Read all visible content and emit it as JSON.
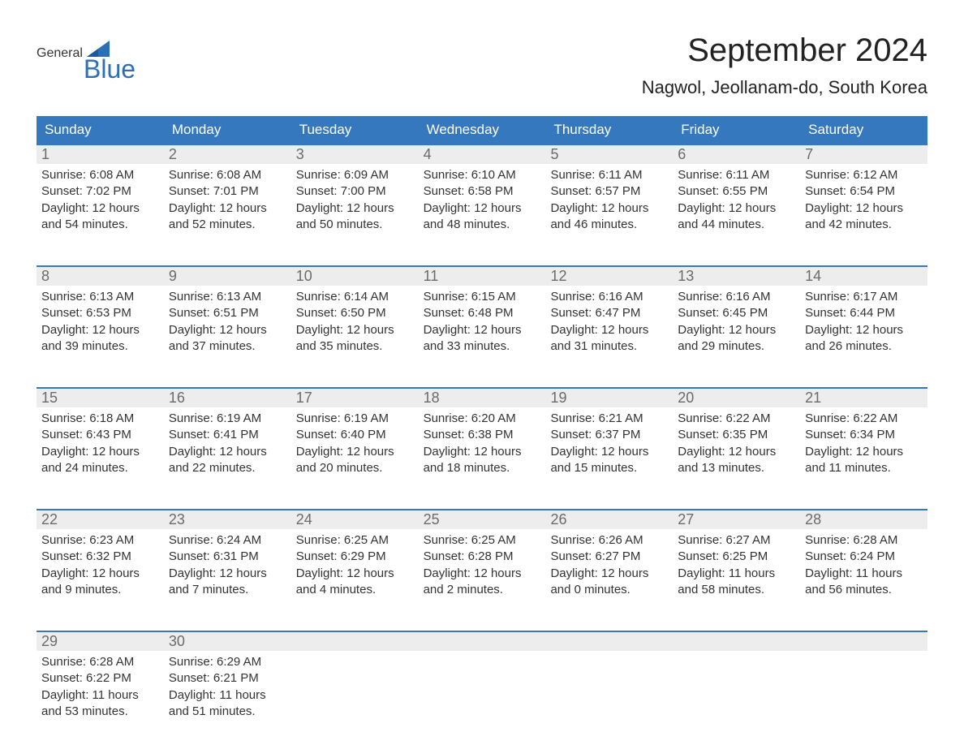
{
  "logo": {
    "text_general": "General",
    "text_blue": "Blue",
    "flag_color": "#2d6fb5"
  },
  "header": {
    "month_title": "September 2024",
    "location": "Nagwol, Jeollanam-do, South Korea"
  },
  "calendar": {
    "type": "table",
    "columns": [
      "Sunday",
      "Monday",
      "Tuesday",
      "Wednesday",
      "Thursday",
      "Friday",
      "Saturday"
    ],
    "header_bg": "#3678bd",
    "header_text_color": "#ffffff",
    "row_accent_color": "#3678bd",
    "daynum_bg": "#ededed",
    "daynum_color": "#6b6b6b",
    "body_text_color": "#333333",
    "background_color": "#ffffff",
    "header_fontsize": 17,
    "body_fontsize": 15,
    "daynum_fontsize": 18,
    "weeks": [
      [
        {
          "day": "1",
          "sunrise": "Sunrise: 6:08 AM",
          "sunset": "Sunset: 7:02 PM",
          "daylight": "Daylight: 12 hours and 54 minutes."
        },
        {
          "day": "2",
          "sunrise": "Sunrise: 6:08 AM",
          "sunset": "Sunset: 7:01 PM",
          "daylight": "Daylight: 12 hours and 52 minutes."
        },
        {
          "day": "3",
          "sunrise": "Sunrise: 6:09 AM",
          "sunset": "Sunset: 7:00 PM",
          "daylight": "Daylight: 12 hours and 50 minutes."
        },
        {
          "day": "4",
          "sunrise": "Sunrise: 6:10 AM",
          "sunset": "Sunset: 6:58 PM",
          "daylight": "Daylight: 12 hours and 48 minutes."
        },
        {
          "day": "5",
          "sunrise": "Sunrise: 6:11 AM",
          "sunset": "Sunset: 6:57 PM",
          "daylight": "Daylight: 12 hours and 46 minutes."
        },
        {
          "day": "6",
          "sunrise": "Sunrise: 6:11 AM",
          "sunset": "Sunset: 6:55 PM",
          "daylight": "Daylight: 12 hours and 44 minutes."
        },
        {
          "day": "7",
          "sunrise": "Sunrise: 6:12 AM",
          "sunset": "Sunset: 6:54 PM",
          "daylight": "Daylight: 12 hours and 42 minutes."
        }
      ],
      [
        {
          "day": "8",
          "sunrise": "Sunrise: 6:13 AM",
          "sunset": "Sunset: 6:53 PM",
          "daylight": "Daylight: 12 hours and 39 minutes."
        },
        {
          "day": "9",
          "sunrise": "Sunrise: 6:13 AM",
          "sunset": "Sunset: 6:51 PM",
          "daylight": "Daylight: 12 hours and 37 minutes."
        },
        {
          "day": "10",
          "sunrise": "Sunrise: 6:14 AM",
          "sunset": "Sunset: 6:50 PM",
          "daylight": "Daylight: 12 hours and 35 minutes."
        },
        {
          "day": "11",
          "sunrise": "Sunrise: 6:15 AM",
          "sunset": "Sunset: 6:48 PM",
          "daylight": "Daylight: 12 hours and 33 minutes."
        },
        {
          "day": "12",
          "sunrise": "Sunrise: 6:16 AM",
          "sunset": "Sunset: 6:47 PM",
          "daylight": "Daylight: 12 hours and 31 minutes."
        },
        {
          "day": "13",
          "sunrise": "Sunrise: 6:16 AM",
          "sunset": "Sunset: 6:45 PM",
          "daylight": "Daylight: 12 hours and 29 minutes."
        },
        {
          "day": "14",
          "sunrise": "Sunrise: 6:17 AM",
          "sunset": "Sunset: 6:44 PM",
          "daylight": "Daylight: 12 hours and 26 minutes."
        }
      ],
      [
        {
          "day": "15",
          "sunrise": "Sunrise: 6:18 AM",
          "sunset": "Sunset: 6:43 PM",
          "daylight": "Daylight: 12 hours and 24 minutes."
        },
        {
          "day": "16",
          "sunrise": "Sunrise: 6:19 AM",
          "sunset": "Sunset: 6:41 PM",
          "daylight": "Daylight: 12 hours and 22 minutes."
        },
        {
          "day": "17",
          "sunrise": "Sunrise: 6:19 AM",
          "sunset": "Sunset: 6:40 PM",
          "daylight": "Daylight: 12 hours and 20 minutes."
        },
        {
          "day": "18",
          "sunrise": "Sunrise: 6:20 AM",
          "sunset": "Sunset: 6:38 PM",
          "daylight": "Daylight: 12 hours and 18 minutes."
        },
        {
          "day": "19",
          "sunrise": "Sunrise: 6:21 AM",
          "sunset": "Sunset: 6:37 PM",
          "daylight": "Daylight: 12 hours and 15 minutes."
        },
        {
          "day": "20",
          "sunrise": "Sunrise: 6:22 AM",
          "sunset": "Sunset: 6:35 PM",
          "daylight": "Daylight: 12 hours and 13 minutes."
        },
        {
          "day": "21",
          "sunrise": "Sunrise: 6:22 AM",
          "sunset": "Sunset: 6:34 PM",
          "daylight": "Daylight: 12 hours and 11 minutes."
        }
      ],
      [
        {
          "day": "22",
          "sunrise": "Sunrise: 6:23 AM",
          "sunset": "Sunset: 6:32 PM",
          "daylight": "Daylight: 12 hours and 9 minutes."
        },
        {
          "day": "23",
          "sunrise": "Sunrise: 6:24 AM",
          "sunset": "Sunset: 6:31 PM",
          "daylight": "Daylight: 12 hours and 7 minutes."
        },
        {
          "day": "24",
          "sunrise": "Sunrise: 6:25 AM",
          "sunset": "Sunset: 6:29 PM",
          "daylight": "Daylight: 12 hours and 4 minutes."
        },
        {
          "day": "25",
          "sunrise": "Sunrise: 6:25 AM",
          "sunset": "Sunset: 6:28 PM",
          "daylight": "Daylight: 12 hours and 2 minutes."
        },
        {
          "day": "26",
          "sunrise": "Sunrise: 6:26 AM",
          "sunset": "Sunset: 6:27 PM",
          "daylight": "Daylight: 12 hours and 0 minutes."
        },
        {
          "day": "27",
          "sunrise": "Sunrise: 6:27 AM",
          "sunset": "Sunset: 6:25 PM",
          "daylight": "Daylight: 11 hours and 58 minutes."
        },
        {
          "day": "28",
          "sunrise": "Sunrise: 6:28 AM",
          "sunset": "Sunset: 6:24 PM",
          "daylight": "Daylight: 11 hours and 56 minutes."
        }
      ],
      [
        {
          "day": "29",
          "sunrise": "Sunrise: 6:28 AM",
          "sunset": "Sunset: 6:22 PM",
          "daylight": "Daylight: 11 hours and 53 minutes."
        },
        {
          "day": "30",
          "sunrise": "Sunrise: 6:29 AM",
          "sunset": "Sunset: 6:21 PM",
          "daylight": "Daylight: 11 hours and 51 minutes."
        },
        {
          "day": "",
          "sunrise": "",
          "sunset": "",
          "daylight": ""
        },
        {
          "day": "",
          "sunrise": "",
          "sunset": "",
          "daylight": ""
        },
        {
          "day": "",
          "sunrise": "",
          "sunset": "",
          "daylight": ""
        },
        {
          "day": "",
          "sunrise": "",
          "sunset": "",
          "daylight": ""
        },
        {
          "day": "",
          "sunrise": "",
          "sunset": "",
          "daylight": ""
        }
      ]
    ]
  }
}
